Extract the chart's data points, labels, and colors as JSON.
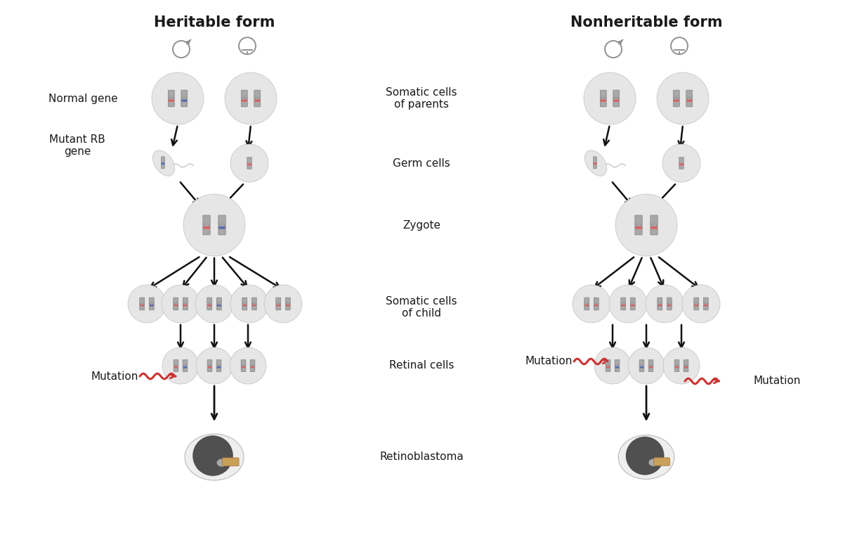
{
  "title_left": "Heritable form",
  "title_right": "Nonheritable form",
  "label_normal_gene": "Normal gene",
  "label_mutant_rb": "Mutant RB\ngene",
  "label_somatic_parents": "Somatic cells\nof parents",
  "label_germ_cells": "Germ cells",
  "label_zygote": "Zygote",
  "label_somatic_child": "Somatic cells\nof child",
  "label_retinal": "Retinal cells",
  "label_mutation": "Mutation",
  "label_retinoblastoma": "Retinoblastoma",
  "bg_color": "#ffffff",
  "text_color": "#1a1a1a",
  "chrom_color": "#a8a8a8",
  "chrom_dark": "#787878",
  "band_red": "#d96060",
  "band_blue": "#5070b8",
  "circle_bg": "#e6e6e6",
  "circle_border": "#c0c0c0",
  "mutation_color": "#cc3333",
  "eye_dark": "#505050",
  "gender_color": "#909090",
  "arrow_color": "#111111"
}
